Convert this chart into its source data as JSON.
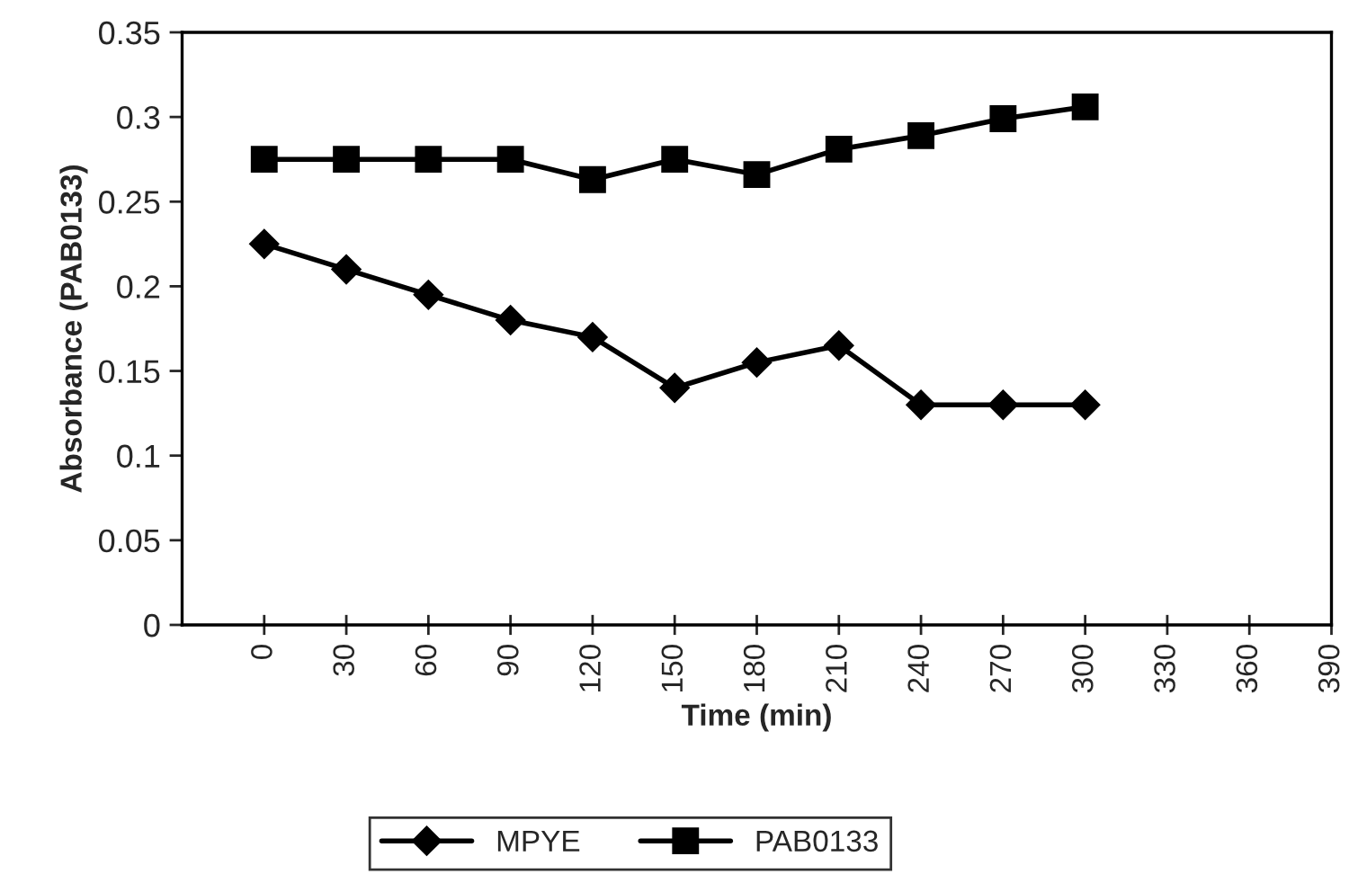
{
  "chart_data": {
    "type": "line",
    "xlabel": "Time (min)",
    "ylabel": "Absorbance (PAB0133)",
    "x": [
      0,
      30,
      60,
      90,
      120,
      150,
      180,
      210,
      240,
      270,
      300
    ],
    "series": [
      {
        "name": "MPYE",
        "color": "#000000",
        "marker": "diamond",
        "values": [
          0.225,
          0.21,
          0.195,
          0.18,
          0.17,
          0.14,
          0.155,
          0.165,
          0.13,
          0.13,
          0.13
        ]
      },
      {
        "name": "PAB0133",
        "color": "#000000",
        "marker": "square",
        "values": [
          0.275,
          0.275,
          0.275,
          0.275,
          0.263,
          0.275,
          0.266,
          0.281,
          0.289,
          0.299,
          0.306
        ]
      }
    ],
    "xlim": [
      -30,
      390
    ],
    "xticks": [
      0,
      30,
      60,
      90,
      120,
      150,
      180,
      210,
      240,
      270,
      300,
      330,
      360,
      390
    ],
    "ylim": [
      0,
      0.35
    ],
    "yticks": [
      0,
      0.05,
      0.1,
      0.15,
      0.2,
      0.25,
      0.3,
      0.35
    ],
    "grid": false,
    "legend": "bottom",
    "line_style": "solid"
  }
}
